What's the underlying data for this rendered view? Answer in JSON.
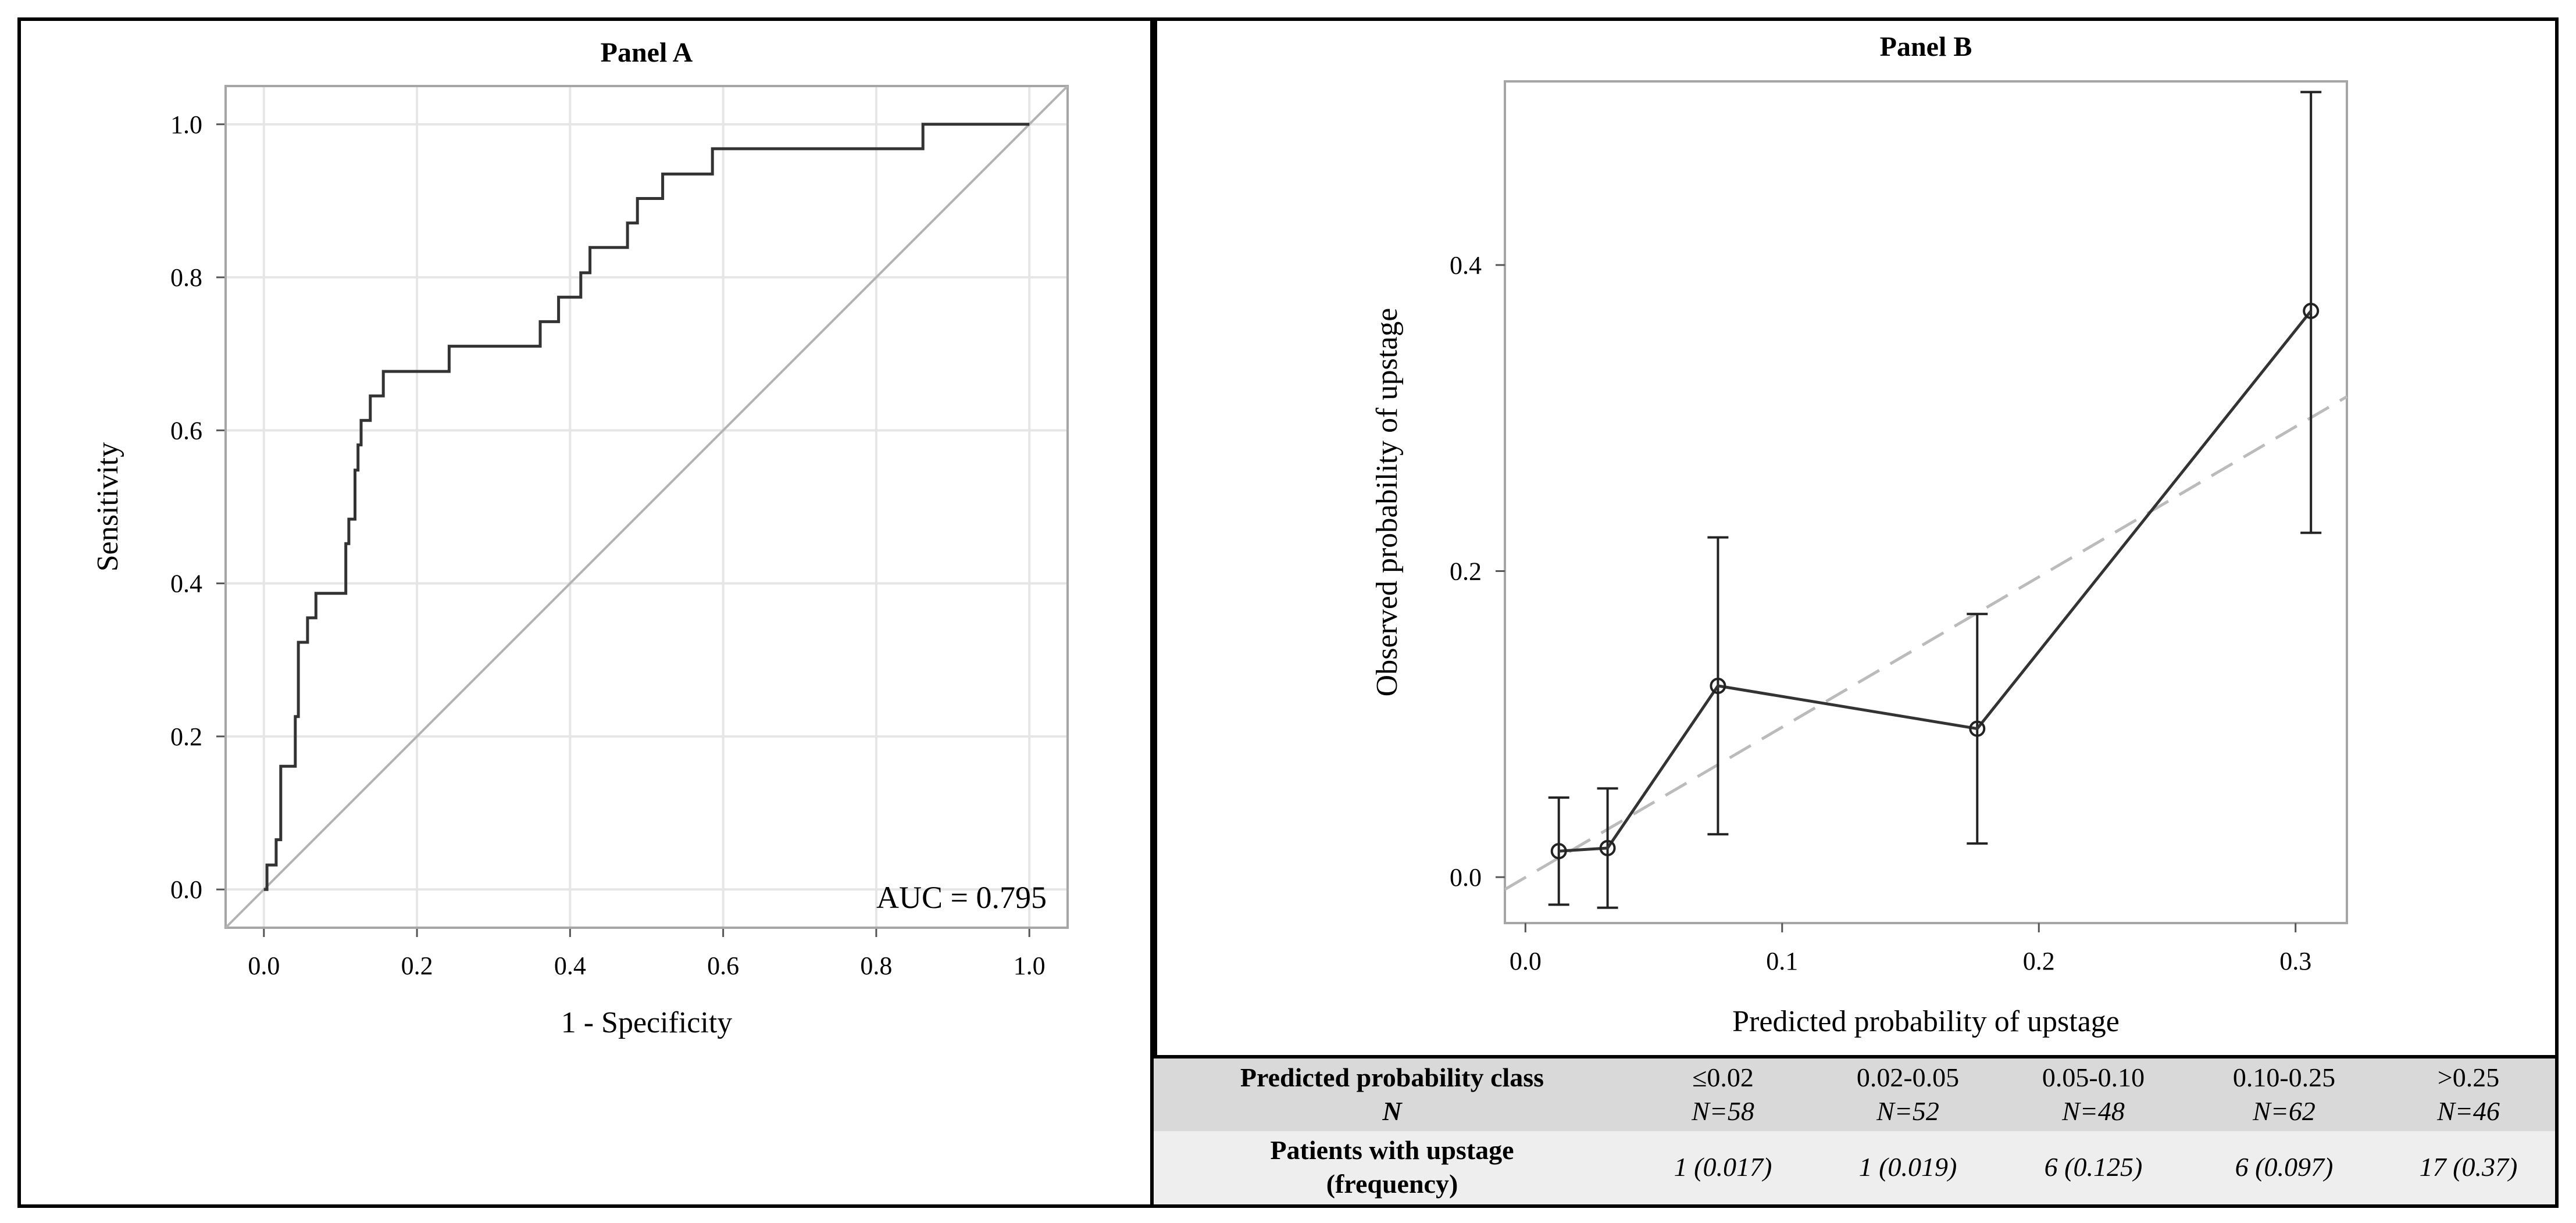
{
  "chart_data": [
    {
      "type": "line",
      "panel": "Panel A",
      "title": "Panel A",
      "xlabel": "1 - Specificity",
      "ylabel": "Sensitivity",
      "xlim": [
        -0.05,
        1.05
      ],
      "ylim": [
        -0.05,
        1.05
      ],
      "xticks": [
        "0.0",
        "0.2",
        "0.4",
        "0.6",
        "0.8",
        "1.0"
      ],
      "yticks": [
        "0.0",
        "0.2",
        "0.4",
        "0.6",
        "0.8",
        "1.0"
      ],
      "grid": true,
      "annotation": "AUC = 0.795",
      "series": [
        {
          "name": "ROC curve",
          "step": true,
          "x": [
            0,
            0.004,
            0.004,
            0.016,
            0.016,
            0.022,
            0.022,
            0.041,
            0.041,
            0.045,
            0.045,
            0.057,
            0.057,
            0.068,
            0.068,
            0.078,
            0.078,
            0.107,
            0.107,
            0.111,
            0.111,
            0.119,
            0.119,
            0.123,
            0.123,
            0.127,
            0.127,
            0.139,
            0.139,
            0.156,
            0.156,
            0.164,
            0.164,
            0.242,
            0.242,
            0.361,
            0.361,
            0.385,
            0.385,
            0.414,
            0.414,
            0.426,
            0.426,
            0.475,
            0.475,
            0.488,
            0.488,
            0.521,
            0.521,
            0.586,
            0.586,
            0.861,
            0.861,
            1.0
          ],
          "y": [
            0,
            0,
            0.032,
            0.032,
            0.065,
            0.065,
            0.161,
            0.161,
            0.226,
            0.226,
            0.323,
            0.323,
            0.355,
            0.355,
            0.387,
            0.387,
            0.387,
            0.387,
            0.452,
            0.452,
            0.484,
            0.484,
            0.548,
            0.548,
            0.581,
            0.581,
            0.613,
            0.613,
            0.645,
            0.645,
            0.677,
            0.677,
            0.677,
            0.677,
            0.71,
            0.71,
            0.742,
            0.742,
            0.774,
            0.774,
            0.806,
            0.806,
            0.839,
            0.839,
            0.871,
            0.871,
            0.903,
            0.903,
            0.935,
            0.935,
            0.968,
            0.968,
            1.0,
            1.0
          ]
        },
        {
          "name": "Reference line",
          "x": [
            0,
            1
          ],
          "y": [
            0,
            1
          ]
        }
      ]
    },
    {
      "type": "line",
      "panel": "Panel B",
      "title": "Panel B",
      "xlabel": "Predicted probability of upstage",
      "ylabel": "Observed probability of upstage",
      "xlim": [
        -0.008,
        0.32
      ],
      "ylim": [
        -0.03,
        0.52
      ],
      "xticks": [
        "0.0",
        "0.1",
        "0.2",
        "0.3"
      ],
      "yticks": [
        "0.0",
        "0.2",
        "0.4"
      ],
      "grid": false,
      "series": [
        {
          "name": "Observed vs predicted",
          "x": [
            0.013,
            0.032,
            0.075,
            0.176,
            0.306
          ],
          "y": [
            0.017,
            0.019,
            0.125,
            0.097,
            0.37
          ],
          "ci_low": [
            -0.018,
            -0.02,
            0.028,
            0.022,
            0.225
          ],
          "ci_high": [
            0.052,
            0.058,
            0.222,
            0.172,
            0.513
          ]
        },
        {
          "name": "Perfect calibration",
          "dashed": true,
          "x": [
            -0.008,
            0.32
          ],
          "y": [
            -0.008,
            0.314
          ]
        }
      ]
    }
  ],
  "table": {
    "header_label": "Predicted probability class",
    "n_label": "N",
    "row_label_line1": "Patients with upstage",
    "row_label_line2": "(frequency)",
    "classes": [
      "≤0.02",
      "0.02-0.05",
      "0.05-0.10",
      "0.10-0.25",
      ">0.25"
    ],
    "n": [
      "N=58",
      "N=52",
      "N=48",
      "N=62",
      "N=46"
    ],
    "upstage": [
      "1 (0.017)",
      "1 (0.019)",
      "6 (0.125)",
      "6 (0.097)",
      "17 (0.37)"
    ]
  }
}
